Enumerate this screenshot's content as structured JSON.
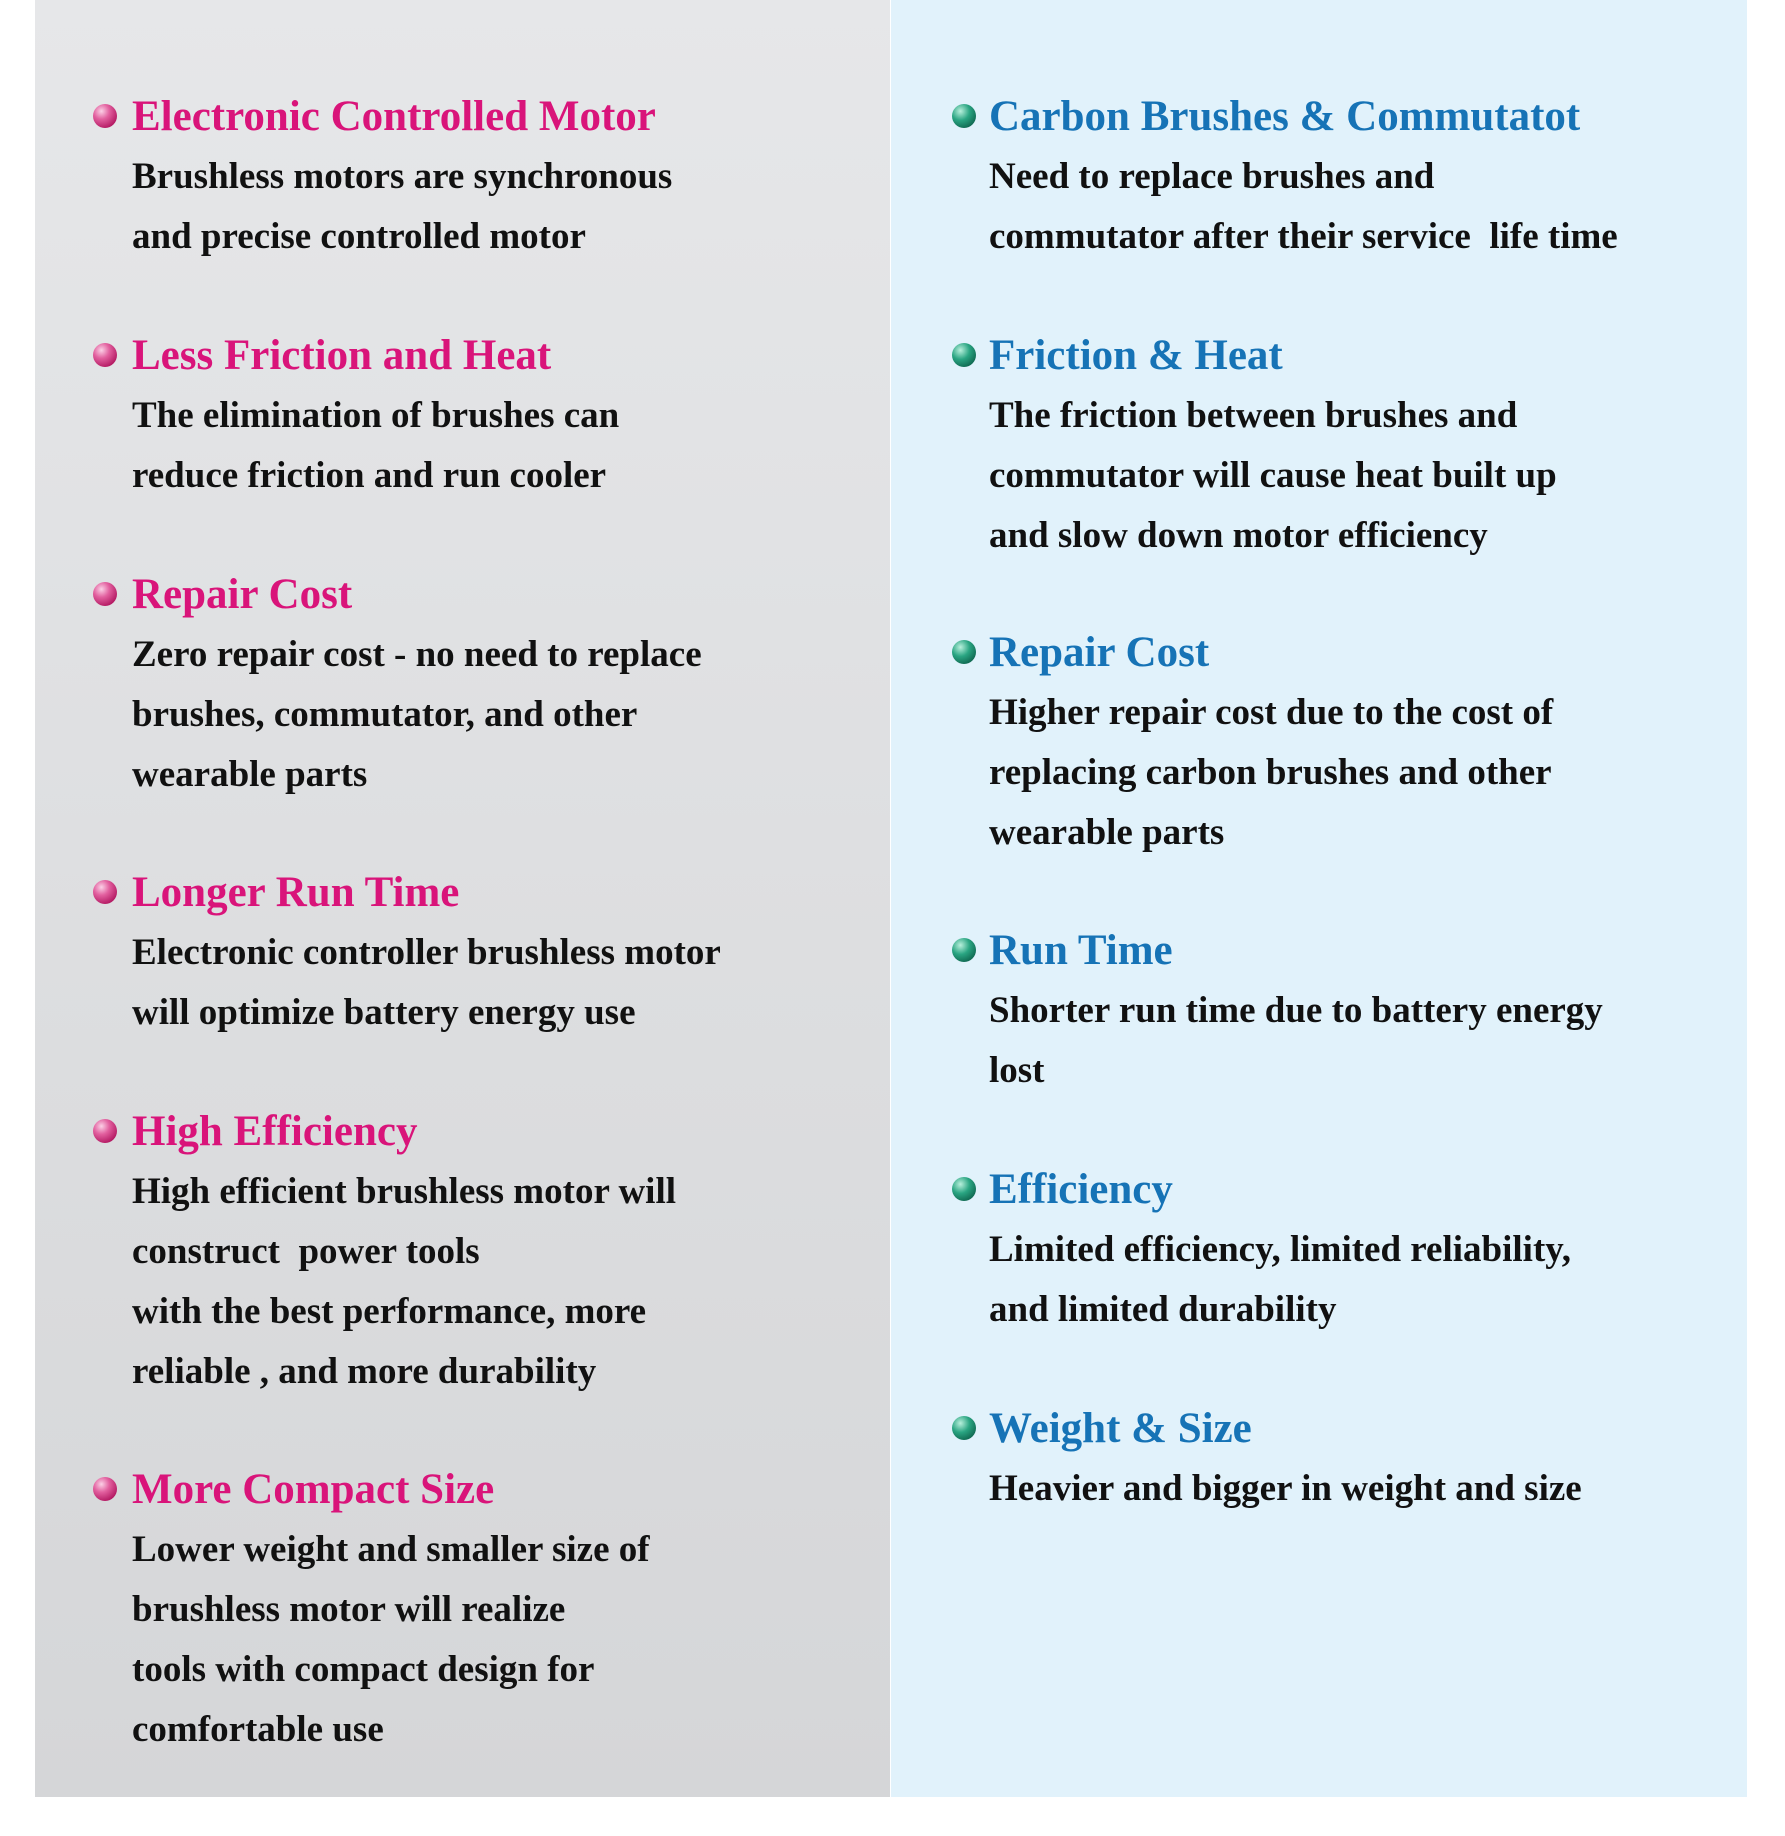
{
  "colors": {
    "left_heading": "#d9147a",
    "right_heading": "#1673b6",
    "left_bg": "#e4e5e7",
    "right_bg": "#e1f2fb"
  },
  "bullet_icons": {
    "left": "pink-sphere-bullet",
    "right": "green-sphere-bullet"
  },
  "left": [
    {
      "title": "Electronic Controlled Motor",
      "lines": [
        "Brushless motors are synchronous",
        "and precise controlled motor"
      ]
    },
    {
      "title": "Less Friction and Heat",
      "lines": [
        "The elimination of brushes can",
        "reduce friction and run cooler"
      ]
    },
    {
      "title": "Repair Cost",
      "lines": [
        "Zero repair cost - no need to replace",
        "brushes, commutator, and other",
        "wearable parts"
      ]
    },
    {
      "title": "Longer Run Time",
      "lines": [
        "Electronic controller brushless motor",
        "will optimize battery energy use"
      ]
    },
    {
      "title": "High Efficiency",
      "lines": [
        "High efficient brushless motor will",
        "construct  power tools",
        "with the best performance, more",
        "reliable , and more durability"
      ]
    },
    {
      "title": "More Compact Size",
      "lines": [
        "Lower weight and smaller size of",
        "brushless motor will realize",
        "tools with compact design for",
        "comfortable use"
      ]
    }
  ],
  "right": [
    {
      "title": "Carbon Brushes & Commutatot",
      "lines": [
        "Need to replace brushes and",
        "commutator after their service  life time"
      ]
    },
    {
      "title": "Friction & Heat",
      "lines": [
        "The friction between brushes and",
        "commutator will cause heat built up",
        "and slow down motor efficiency"
      ]
    },
    {
      "title": "Repair Cost",
      "lines": [
        "Higher repair cost due to the cost of",
        "replacing carbon brushes and other",
        "wearable parts"
      ]
    },
    {
      "title": "Run Time",
      "lines": [
        "Shorter run time due to battery energy",
        "lost"
      ]
    },
    {
      "title": "Efficiency",
      "lines": [
        "Limited efficiency, limited reliability,",
        "and limited durability"
      ]
    },
    {
      "title": "Weight & Size",
      "lines": [
        "Heavier and bigger in weight and size"
      ]
    }
  ]
}
